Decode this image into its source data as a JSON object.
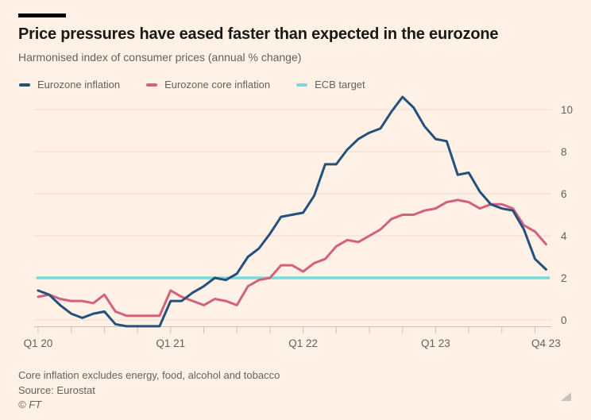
{
  "header": {
    "title": "Price pressures have eased faster than expected in the eurozone",
    "subtitle": "Harmonised index of consumer prices (annual % change)"
  },
  "footer": {
    "note": "Core inflation excludes energy, food, alcohol and tobacco",
    "source": "Source: Eurostat",
    "copyright": "© FT"
  },
  "colors": {
    "background": "#fff1e5",
    "title_text": "#1a1817",
    "muted_text": "#66605b",
    "gridline": "#eadcd0",
    "axis": "#cbc0b5",
    "headline_line": "#23507d",
    "core_line": "#d5607c",
    "target_line": "#7cd8de"
  },
  "chart_data": {
    "type": "line",
    "title": "Price pressures have eased faster than expected in the eurozone",
    "subtitle": "Harmonised index of consumer prices (annual % change)",
    "x_unit": "month",
    "x_start": "2020-01",
    "x_end": "2023-11",
    "grid": true,
    "legend_position": "top",
    "y_axis_side": "right",
    "y_ticks": [
      0,
      2,
      4,
      6,
      8,
      10
    ],
    "ylim": [
      -0.45,
      10.9
    ],
    "x_labels": [
      {
        "label": "Q1 20",
        "month": 0
      },
      {
        "label": "Q1 21",
        "month": 12
      },
      {
        "label": "Q1 22",
        "month": 24
      },
      {
        "label": "Q1 23",
        "month": 36
      },
      {
        "label": "Q4 23",
        "month": 46
      }
    ],
    "series": [
      {
        "name": "ECB target",
        "color": "#7cd8de",
        "constant": 2
      },
      {
        "name": "Eurozone core inflation",
        "color": "#d5607c",
        "values": [
          1.1,
          1.2,
          1.0,
          0.9,
          0.9,
          0.8,
          1.2,
          0.4,
          0.2,
          0.2,
          0.2,
          0.2,
          1.4,
          1.1,
          0.9,
          0.7,
          1.0,
          0.9,
          0.7,
          1.6,
          1.9,
          2.0,
          2.6,
          2.6,
          2.3,
          2.7,
          2.9,
          3.5,
          3.8,
          3.7,
          4.0,
          4.3,
          4.8,
          5.0,
          5.0,
          5.2,
          5.3,
          5.6,
          5.7,
          5.6,
          5.3,
          5.5,
          5.5,
          5.3,
          4.5,
          4.2,
          3.6
        ]
      },
      {
        "name": "Eurozone inflation",
        "color": "#23507d",
        "values": [
          1.4,
          1.2,
          0.7,
          0.3,
          0.1,
          0.3,
          0.4,
          -0.2,
          -0.3,
          -0.3,
          -0.3,
          -0.3,
          0.9,
          0.9,
          1.3,
          1.6,
          2.0,
          1.9,
          2.2,
          3.0,
          3.4,
          4.1,
          4.9,
          5.0,
          5.1,
          5.9,
          7.4,
          7.4,
          8.1,
          8.6,
          8.9,
          9.1,
          9.9,
          10.6,
          10.1,
          9.2,
          8.6,
          8.5,
          6.9,
          7.0,
          6.1,
          5.5,
          5.3,
          5.2,
          4.3,
          2.9,
          2.4
        ]
      }
    ]
  },
  "legend": [
    {
      "label": "Eurozone inflation",
      "color": "#23507d"
    },
    {
      "label": "Eurozone core inflation",
      "color": "#d5607c"
    },
    {
      "label": "ECB target",
      "color": "#7cd8de"
    }
  ]
}
